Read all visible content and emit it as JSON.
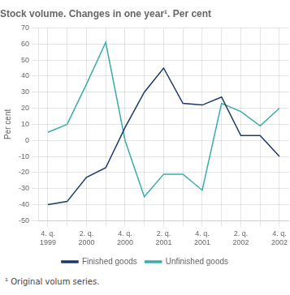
{
  "chart_data": {
    "type": "line",
    "title": "Stock volume. Changes in one year¹. Per cent",
    "ylabel": "Per cent",
    "footnote": "¹ Original volum series.",
    "categories": [
      "4. q.\n1999",
      null,
      "2. q.\n2000",
      null,
      "4. q.\n2000",
      null,
      "2. q.\n2001",
      null,
      "4. q.\n2001",
      null,
      "2. q.\n2002",
      null,
      "4. q.\n2002"
    ],
    "series": [
      {
        "name": "Finished goods",
        "color": "#1a3a6b",
        "values": [
          -40,
          -38,
          -23,
          -17,
          8,
          30,
          45,
          23,
          22,
          27,
          3,
          3,
          -10
        ]
      },
      {
        "name": "Unfinished goods",
        "color": "#3aada8",
        "values": [
          5,
          10,
          35,
          61,
          0,
          -35,
          -21,
          -21,
          -31,
          23,
          18,
          9,
          20
        ]
      }
    ],
    "ylim": [
      -50,
      70
    ],
    "yticks": [
      -50,
      -40,
      -30,
      -20,
      -10,
      0,
      10,
      20,
      30,
      40,
      50,
      60,
      70
    ],
    "grid": true,
    "legend": "bottom"
  }
}
